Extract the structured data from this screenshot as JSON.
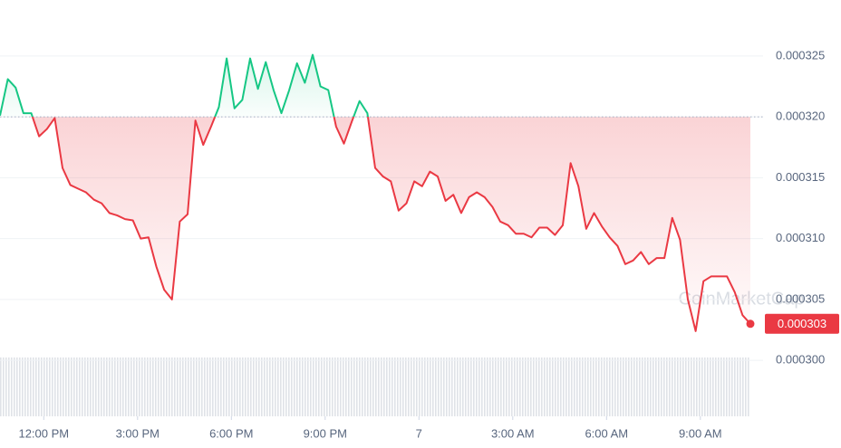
{
  "chart_data": {
    "type": "baseline-line",
    "x": [
      -1.4,
      -1.15,
      -0.9,
      -0.65,
      -0.4,
      -0.15,
      0.1,
      0.35,
      0.6,
      0.85,
      1.1,
      1.35,
      1.6,
      1.85,
      2.1,
      2.35,
      2.6,
      2.85,
      3.1,
      3.35,
      3.6,
      3.85,
      4.1,
      4.35,
      4.6,
      4.85,
      5.1,
      5.35,
      5.6,
      5.85,
      6.1,
      6.35,
      6.6,
      6.85,
      7.1,
      7.35,
      7.6,
      7.85,
      8.1,
      8.35,
      8.6,
      8.85,
      9.1,
      9.35,
      9.6,
      9.85,
      10.1,
      10.35,
      10.6,
      10.85,
      11.1,
      11.35,
      11.6,
      11.85,
      12.1,
      12.35,
      12.6,
      12.85,
      13.1,
      13.35,
      13.6,
      13.85,
      14.1,
      14.35,
      14.6,
      14.85,
      15.1,
      15.35,
      15.6,
      15.85,
      16.1,
      16.35,
      16.6,
      16.85,
      17.1,
      17.35,
      17.6,
      17.85,
      18.1,
      18.35,
      18.6,
      18.85,
      19.1,
      19.35,
      19.6,
      19.85,
      20.1,
      20.35,
      20.6,
      20.85,
      21.1,
      21.35,
      21.6,
      21.85,
      22.1,
      22.35,
      22.6
    ],
    "values": [
      0.0003201,
      0.0003231,
      0.0003224,
      0.0003203,
      0.0003203,
      0.0003184,
      0.000319,
      0.0003199,
      0.0003158,
      0.0003144,
      0.0003141,
      0.0003138,
      0.0003132,
      0.0003129,
      0.0003121,
      0.0003119,
      0.0003116,
      0.0003115,
      0.00031,
      0.0003101,
      0.0003077,
      0.0003058,
      0.000305,
      0.0003114,
      0.000312,
      0.0003197,
      0.0003177,
      0.0003192,
      0.0003208,
      0.0003248,
      0.0003207,
      0.0003214,
      0.0003248,
      0.0003223,
      0.0003245,
      0.0003222,
      0.0003203,
      0.0003222,
      0.0003244,
      0.0003228,
      0.0003251,
      0.0003225,
      0.0003222,
      0.0003192,
      0.0003178,
      0.0003196,
      0.0003213,
      0.0003203,
      0.0003158,
      0.0003151,
      0.0003147,
      0.0003123,
      0.0003129,
      0.0003147,
      0.0003143,
      0.0003155,
      0.0003151,
      0.0003131,
      0.0003136,
      0.0003121,
      0.0003134,
      0.0003138,
      0.0003134,
      0.0003126,
      0.0003114,
      0.0003111,
      0.0003104,
      0.0003104,
      0.0003101,
      0.0003109,
      0.0003109,
      0.0003103,
      0.0003111,
      0.0003162,
      0.0003143,
      0.0003108,
      0.0003121,
      0.000311,
      0.0003101,
      0.0003094,
      0.0003079,
      0.0003082,
      0.0003089,
      0.0003079,
      0.0003084,
      0.0003084,
      0.0003117,
      0.0003099,
      0.000305,
      0.0003024,
      0.0003065,
      0.0003069,
      0.0003069,
      0.0003069,
      0.0003056,
      0.0003037,
      0.000303
    ],
    "baseline": 0.00032,
    "up_color": "#16c784",
    "down_color": "#ea3943",
    "xlim": [
      -1.4,
      22.6
    ],
    "ylim": [
      0.0002954,
      0.0003296
    ],
    "xticks": [
      {
        "value": 0,
        "label": "12:00 PM"
      },
      {
        "value": 3,
        "label": "3:00 PM"
      },
      {
        "value": 6,
        "label": "6:00 PM"
      },
      {
        "value": 9,
        "label": "9:00 PM"
      },
      {
        "value": 12,
        "label": "7"
      },
      {
        "value": 15,
        "label": "3:00 AM"
      },
      {
        "value": 18,
        "label": "6:00 AM"
      },
      {
        "value": 21,
        "label": "9:00 AM"
      }
    ],
    "yticks": [
      {
        "value": 0.0003,
        "label": "0.000300"
      },
      0.000305,
      {
        "value": 0.00031,
        "label": "0.000310"
      },
      0.000315,
      {
        "value": 0.00032,
        "label": "0.000320"
      },
      0.000325
    ],
    "grid": true,
    "last_label": "0.000303",
    "watermark": "CoinMarketCap"
  }
}
